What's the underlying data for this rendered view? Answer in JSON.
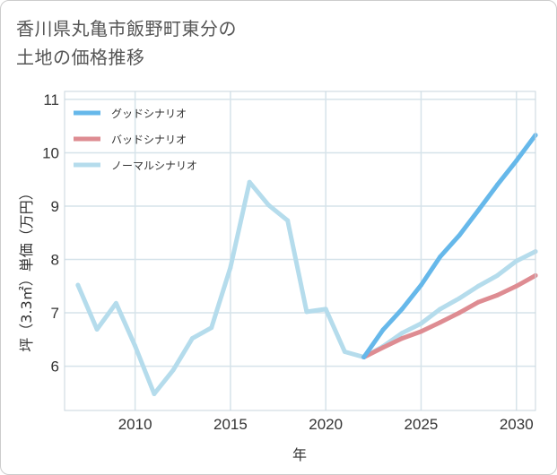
{
  "title_line1": "香川県丸亀市飯野町東分の",
  "title_line2": "土地の価格推移",
  "chart_data": {
    "type": "line",
    "title": "香川県丸亀市飯野町東分の土地の価格推移",
    "xlabel": "年",
    "ylabel": "坪（3.3㎡）単価（万円）",
    "xlim": [
      2006.3,
      2031
    ],
    "ylim": [
      5.17,
      11.15
    ],
    "xticks": [
      2010,
      2015,
      2020,
      2025,
      2030
    ],
    "yticks": [
      6,
      7,
      8,
      9,
      10,
      11
    ],
    "grid": true,
    "legend_position": "top-left",
    "series": [
      {
        "name": "グッドシナリオ",
        "color": "#66b8ea",
        "x": [
          2022,
          2023,
          2024,
          2025,
          2026,
          2027,
          2028,
          2029,
          2030,
          2031
        ],
        "values": [
          6.17,
          6.68,
          7.07,
          7.52,
          8.05,
          8.45,
          8.92,
          9.4,
          9.85,
          10.33
        ]
      },
      {
        "name": "バッドシナリオ",
        "color": "#de8c92",
        "x": [
          2022,
          2023,
          2024,
          2025,
          2026,
          2027,
          2028,
          2029,
          2030,
          2031
        ],
        "values": [
          6.17,
          6.35,
          6.52,
          6.65,
          6.82,
          7.0,
          7.2,
          7.33,
          7.5,
          7.7
        ]
      },
      {
        "name": "ノーマルシナリオ",
        "color": "#b5dcec",
        "x": [
          2007,
          2008,
          2009,
          2010,
          2011,
          2012,
          2013,
          2014,
          2015,
          2016,
          2017,
          2018,
          2019,
          2020,
          2021,
          2022,
          2023,
          2024,
          2025,
          2026,
          2027,
          2028,
          2029,
          2030,
          2031
        ],
        "values": [
          7.52,
          6.69,
          7.18,
          6.38,
          5.48,
          5.93,
          6.52,
          6.72,
          7.85,
          9.45,
          9.02,
          8.73,
          7.02,
          7.07,
          6.27,
          6.17,
          6.37,
          6.62,
          6.8,
          7.07,
          7.27,
          7.5,
          7.7,
          7.97,
          8.15
        ]
      }
    ]
  }
}
